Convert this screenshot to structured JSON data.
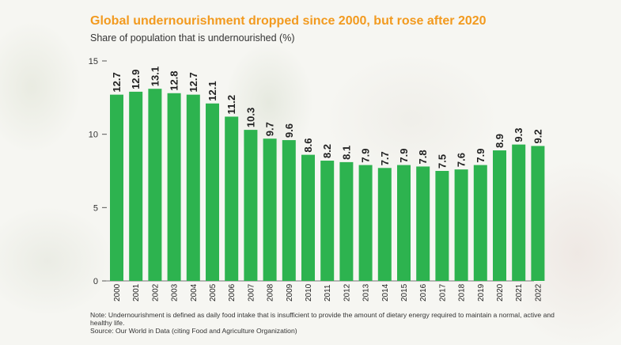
{
  "title": "Global undernourishment dropped since 2000, but rose after 2020",
  "subtitle": "Share of population that is undernourished (%)",
  "note": "Note: Undernourishment is defined as daily food intake that is insufficient to provide the amount of dietary energy required to maintain a normal, active and healthy life.",
  "source": "Source: Our World in Data (citing Food and Agriculture Organization)",
  "colors": {
    "bar": "#2db34f",
    "title": "#f29a1f",
    "text": "#222222"
  },
  "chart_data": {
    "type": "bar",
    "categories": [
      "2000",
      "2001",
      "2002",
      "2003",
      "2004",
      "2005",
      "2006",
      "2007",
      "2008",
      "2009",
      "2010",
      "2011",
      "2012",
      "2013",
      "2014",
      "2015",
      "2016",
      "2017",
      "2018",
      "2019",
      "2020",
      "2021",
      "2022"
    ],
    "values": [
      12.7,
      12.9,
      13.1,
      12.8,
      12.7,
      12.1,
      11.2,
      10.3,
      9.7,
      9.6,
      8.6,
      8.2,
      8.1,
      7.9,
      7.7,
      7.9,
      7.8,
      7.5,
      7.6,
      7.9,
      8.9,
      9.3,
      9.2
    ],
    "data_labels": [
      "12.7",
      "12.9",
      "13.1",
      "12.8",
      "12.7",
      "12.1",
      "11.2",
      "10.3",
      "9.7",
      "9.6",
      "8.6",
      "8.2",
      "8.1",
      "7.9",
      "7.7",
      "7.9",
      "7.8",
      "7.5",
      "7.6",
      "7.9",
      "8.9",
      "9.3",
      "9.2"
    ],
    "yticks": [
      "0",
      "5",
      "10",
      "15"
    ],
    "ylim": [
      0,
      15
    ],
    "grid": false,
    "xlabel": "",
    "ylabel": ""
  }
}
